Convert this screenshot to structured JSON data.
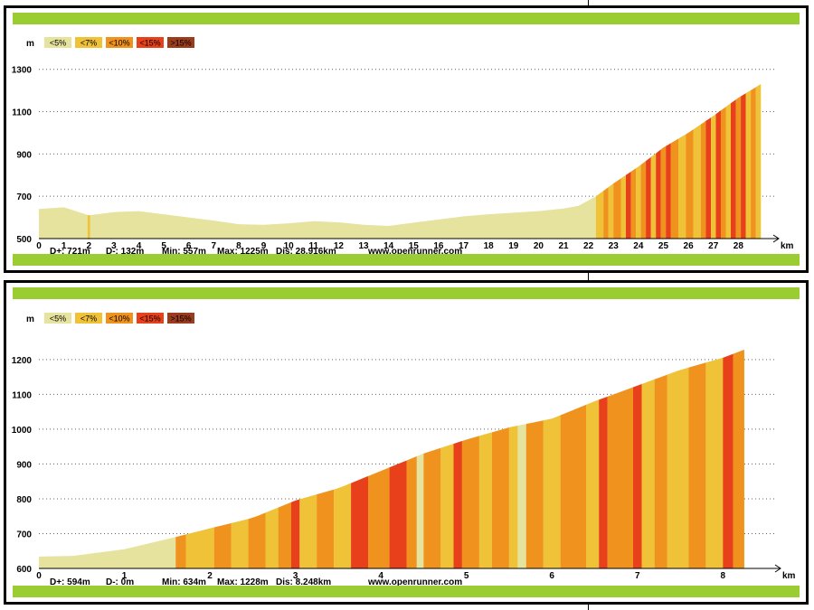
{
  "colors": {
    "lt5": "#e6e39e",
    "lt7": "#f0c238",
    "lt10": "#f0931e",
    "lt15": "#e8401a",
    "gt15": "#9c3c1e",
    "frame_bar": "#9acd32"
  },
  "chart_data": [
    {
      "type": "area",
      "title": "",
      "ylabel": "m",
      "xlabel": "km",
      "xlim": [
        0,
        29.4
      ],
      "ylim": [
        500,
        1350
      ],
      "yticks": [
        500,
        700,
        900,
        1100,
        1300
      ],
      "xticks": [
        0,
        1,
        2,
        3,
        4,
        5,
        6,
        7,
        8,
        9,
        10,
        11,
        12,
        13,
        14,
        15,
        16,
        17,
        18,
        19,
        20,
        21,
        22,
        23,
        24,
        25,
        26,
        27,
        28
      ],
      "grid": true,
      "legend": [
        {
          "label": "<5%",
          "color": "#e6e39e"
        },
        {
          "label": "<7%",
          "color": "#f0c238"
        },
        {
          "label": "<10%",
          "color": "#f0931e"
        },
        {
          "label": "<15%",
          "color": "#e8401a"
        },
        {
          "label": ">15%",
          "color": "#9c3c1e"
        }
      ],
      "profile": [
        [
          0,
          640
        ],
        [
          1,
          648
        ],
        [
          2,
          610
        ],
        [
          3,
          625
        ],
        [
          4,
          630
        ],
        [
          5,
          615
        ],
        [
          6,
          600
        ],
        [
          7,
          585
        ],
        [
          8,
          568
        ],
        [
          9,
          565
        ],
        [
          10,
          572
        ],
        [
          11,
          582
        ],
        [
          12,
          577
        ],
        [
          13,
          565
        ],
        [
          14,
          560
        ],
        [
          15,
          575
        ],
        [
          16,
          590
        ],
        [
          17,
          605
        ],
        [
          18,
          615
        ],
        [
          19,
          622
        ],
        [
          20,
          630
        ],
        [
          21,
          642
        ],
        [
          21.6,
          655
        ],
        [
          22.3,
          700
        ],
        [
          23,
          760
        ],
        [
          24,
          840
        ],
        [
          25,
          930
        ],
        [
          26,
          1000
        ],
        [
          27,
          1080
        ],
        [
          28,
          1165
        ],
        [
          28.9,
          1230
        ]
      ],
      "slopes": [
        [
          1.95,
          2.05,
          "lt7"
        ],
        [
          22.3,
          22.6,
          "lt7"
        ],
        [
          22.6,
          22.8,
          "lt10"
        ],
        [
          22.8,
          23.0,
          "lt7"
        ],
        [
          23.0,
          23.3,
          "lt10"
        ],
        [
          23.3,
          23.5,
          "lt7"
        ],
        [
          23.5,
          23.7,
          "lt15"
        ],
        [
          23.7,
          23.9,
          "lt10"
        ],
        [
          23.9,
          24.1,
          "lt7"
        ],
        [
          24.1,
          24.3,
          "lt10"
        ],
        [
          24.3,
          24.5,
          "lt15"
        ],
        [
          24.5,
          24.7,
          "lt7"
        ],
        [
          24.7,
          24.9,
          "lt15"
        ],
        [
          24.9,
          25.1,
          "lt10"
        ],
        [
          25.1,
          25.3,
          "lt15"
        ],
        [
          25.3,
          25.6,
          "lt10"
        ],
        [
          25.6,
          25.9,
          "lt7"
        ],
        [
          25.9,
          26.2,
          "lt10"
        ],
        [
          26.2,
          26.5,
          "lt7"
        ],
        [
          26.5,
          26.7,
          "lt10"
        ],
        [
          26.7,
          26.9,
          "lt15"
        ],
        [
          26.9,
          27.1,
          "lt7"
        ],
        [
          27.1,
          27.3,
          "lt15"
        ],
        [
          27.3,
          27.5,
          "lt10"
        ],
        [
          27.5,
          27.7,
          "lt7"
        ],
        [
          27.7,
          27.9,
          "lt15"
        ],
        [
          27.9,
          28.1,
          "lt10"
        ],
        [
          28.1,
          28.3,
          "lt15"
        ],
        [
          28.3,
          28.5,
          "lt7"
        ],
        [
          28.5,
          28.7,
          "lt10"
        ],
        [
          28.7,
          28.9,
          "lt7"
        ]
      ],
      "stats": {
        "d_plus": "D+: 721m",
        "d_minus": "D-: 132m",
        "min": "Min: 557m",
        "max": "Max: 1225m",
        "dis": "Dis: 28.916km",
        "site": "www.openrunner.com"
      }
    },
    {
      "type": "area",
      "title": "",
      "ylabel": "m",
      "xlabel": "km",
      "xlim": [
        0,
        8.6
      ],
      "ylim": [
        600,
        1280
      ],
      "yticks": [
        600,
        700,
        800,
        900,
        1000,
        1100,
        1200
      ],
      "xticks": [
        0,
        1,
        2,
        3,
        4,
        5,
        6,
        7,
        8
      ],
      "grid": true,
      "legend": [
        {
          "label": "<5%",
          "color": "#e6e39e"
        },
        {
          "label": "<7%",
          "color": "#f0c238"
        },
        {
          "label": "<10%",
          "color": "#f0931e"
        },
        {
          "label": "<15%",
          "color": "#e8401a"
        },
        {
          "label": ">15%",
          "color": "#9c3c1e"
        }
      ],
      "profile": [
        [
          0,
          634
        ],
        [
          0.4,
          636
        ],
        [
          1,
          655
        ],
        [
          1.6,
          690
        ],
        [
          2,
          715
        ],
        [
          2.5,
          745
        ],
        [
          3,
          795
        ],
        [
          3.5,
          830
        ],
        [
          4,
          880
        ],
        [
          4.5,
          930
        ],
        [
          5,
          970
        ],
        [
          5.5,
          1005
        ],
        [
          6,
          1030
        ],
        [
          6.5,
          1080
        ],
        [
          7,
          1125
        ],
        [
          7.5,
          1170
        ],
        [
          8,
          1205
        ],
        [
          8.25,
          1228
        ]
      ],
      "slopes": [
        [
          1.6,
          1.72,
          "lt10"
        ],
        [
          1.72,
          2.05,
          "lt7"
        ],
        [
          2.05,
          2.25,
          "lt10"
        ],
        [
          2.25,
          2.45,
          "lt7"
        ],
        [
          2.45,
          2.65,
          "lt10"
        ],
        [
          2.65,
          2.8,
          "lt7"
        ],
        [
          2.8,
          2.95,
          "lt10"
        ],
        [
          2.95,
          3.05,
          "lt15"
        ],
        [
          3.05,
          3.25,
          "lt7"
        ],
        [
          3.25,
          3.45,
          "lt10"
        ],
        [
          3.45,
          3.65,
          "lt7"
        ],
        [
          3.65,
          3.85,
          "lt15"
        ],
        [
          3.85,
          4.1,
          "lt10"
        ],
        [
          4.1,
          4.3,
          "lt15"
        ],
        [
          4.3,
          4.42,
          "lt10"
        ],
        [
          4.42,
          4.5,
          "lt5"
        ],
        [
          4.5,
          4.7,
          "lt10"
        ],
        [
          4.7,
          4.85,
          "lt7"
        ],
        [
          4.85,
          4.95,
          "lt15"
        ],
        [
          4.95,
          5.15,
          "lt10"
        ],
        [
          5.15,
          5.3,
          "lt7"
        ],
        [
          5.3,
          5.5,
          "lt10"
        ],
        [
          5.5,
          5.6,
          "lt7"
        ],
        [
          5.6,
          5.7,
          "lt5"
        ],
        [
          5.7,
          5.9,
          "lt10"
        ],
        [
          5.9,
          6.1,
          "lt7"
        ],
        [
          6.1,
          6.4,
          "lt10"
        ],
        [
          6.4,
          6.55,
          "lt7"
        ],
        [
          6.55,
          6.65,
          "lt15"
        ],
        [
          6.65,
          6.95,
          "lt10"
        ],
        [
          6.95,
          7.05,
          "lt15"
        ],
        [
          7.05,
          7.2,
          "lt7"
        ],
        [
          7.2,
          7.35,
          "lt10"
        ],
        [
          7.35,
          7.6,
          "lt7"
        ],
        [
          7.6,
          7.8,
          "lt10"
        ],
        [
          7.8,
          8.0,
          "lt7"
        ],
        [
          8.0,
          8.12,
          "lt15"
        ],
        [
          8.12,
          8.25,
          "lt10"
        ]
      ],
      "stats": {
        "d_plus": "D+: 594m",
        "d_minus": "D-: 0m",
        "min": "Min: 634m",
        "max": "Max: 1228m",
        "dis": "Dis: 8.248km",
        "site": "www.openrunner.com"
      }
    }
  ]
}
